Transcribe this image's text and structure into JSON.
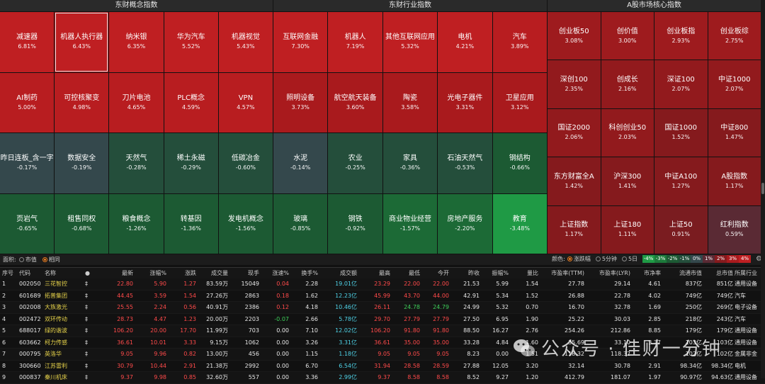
{
  "panels": [
    {
      "title": "东财概念指数",
      "tiles": [
        {
          "name": "减速器",
          "pct": "6.81%",
          "color": "#bf1f22"
        },
        {
          "name": "机器人执行器",
          "pct": "6.43%",
          "color": "#bf1f22",
          "selected": true
        },
        {
          "name": "纳米银",
          "pct": "6.35%",
          "color": "#bf1f22"
        },
        {
          "name": "华为汽车",
          "pct": "5.52%",
          "color": "#bf1f22"
        },
        {
          "name": "机器视觉",
          "pct": "5.43%",
          "color": "#bf1f22"
        },
        {
          "name": "AI制药",
          "pct": "5.00%",
          "color": "#b81d20"
        },
        {
          "name": "可控核聚变",
          "pct": "4.98%",
          "color": "#b81d20"
        },
        {
          "name": "刀片电池",
          "pct": "4.65%",
          "color": "#b81d20"
        },
        {
          "name": "PLC概念",
          "pct": "4.59%",
          "color": "#b81d20"
        },
        {
          "name": "VPN",
          "pct": "4.57%",
          "color": "#b81d20"
        },
        {
          "name": "昨日连板_含一字",
          "pct": "-0.17%",
          "color": "#34484c"
        },
        {
          "name": "数据安全",
          "pct": "-0.19%",
          "color": "#34484c"
        },
        {
          "name": "天然气",
          "pct": "-0.28%",
          "color": "#244e3b"
        },
        {
          "name": "稀土永磁",
          "pct": "-0.29%",
          "color": "#244e3b"
        },
        {
          "name": "低碳冶金",
          "pct": "-0.60%",
          "color": "#244e3b"
        },
        {
          "name": "页岩气",
          "pct": "-0.65%",
          "color": "#1c5a33"
        },
        {
          "name": "租售同权",
          "pct": "-0.68%",
          "color": "#1c5a33"
        },
        {
          "name": "粮食概念",
          "pct": "-1.26%",
          "color": "#1c5a33"
        },
        {
          "name": "转基因",
          "pct": "-1.36%",
          "color": "#1c5a33"
        },
        {
          "name": "发电机概念",
          "pct": "-1.56%",
          "color": "#1c5a33"
        }
      ]
    },
    {
      "title": "东财行业指数",
      "tiles": [
        {
          "name": "互联网金融",
          "pct": "7.30%",
          "color": "#bf1f22"
        },
        {
          "name": "机器人",
          "pct": "7.19%",
          "color": "#bf1f22"
        },
        {
          "name": "其他互联网应用",
          "pct": "5.32%",
          "color": "#bf1f22"
        },
        {
          "name": "电机",
          "pct": "4.21%",
          "color": "#bf1f22"
        },
        {
          "name": "汽车",
          "pct": "3.89%",
          "color": "#b81d20"
        },
        {
          "name": "照明设备",
          "pct": "3.73%",
          "color": "#a91a1d"
        },
        {
          "name": "航空航天装备",
          "pct": "3.60%",
          "color": "#a91a1d"
        },
        {
          "name": "陶瓷",
          "pct": "3.58%",
          "color": "#a91a1d"
        },
        {
          "name": "光电子器件",
          "pct": "3.31%",
          "color": "#a91a1d"
        },
        {
          "name": "卫星应用",
          "pct": "3.12%",
          "color": "#a91a1d"
        },
        {
          "name": "水泥",
          "pct": "-0.14%",
          "color": "#34484c"
        },
        {
          "name": "农业",
          "pct": "-0.25%",
          "color": "#244e3b"
        },
        {
          "name": "家具",
          "pct": "-0.36%",
          "color": "#244e3b"
        },
        {
          "name": "石油天然气",
          "pct": "-0.53%",
          "color": "#244e3b"
        },
        {
          "name": "钢结构",
          "pct": "-0.66%",
          "color": "#1c5a33"
        },
        {
          "name": "玻璃",
          "pct": "-0.85%",
          "color": "#1c5a33"
        },
        {
          "name": "钢铁",
          "pct": "-0.92%",
          "color": "#1c5a33"
        },
        {
          "name": "商业物业经营",
          "pct": "-1.57%",
          "color": "#1c6a36"
        },
        {
          "name": "房地产服务",
          "pct": "-2.20%",
          "color": "#1c6a36"
        },
        {
          "name": "教育",
          "pct": "-3.48%",
          "color": "#1f9a45"
        }
      ]
    },
    {
      "title": "A股市场核心指数",
      "tiles": [
        {
          "name": "创业板50",
          "pct": "3.08%",
          "color": "#9e1b1e"
        },
        {
          "name": "创价值",
          "pct": "3.00%",
          "color": "#9e1b1e"
        },
        {
          "name": "创业板指",
          "pct": "2.93%",
          "color": "#9e1b1e"
        },
        {
          "name": "创业板综",
          "pct": "2.75%",
          "color": "#9e1b1e"
        },
        {
          "name": "深创100",
          "pct": "2.35%",
          "color": "#921a1d"
        },
        {
          "name": "创成长",
          "pct": "2.16%",
          "color": "#921a1d"
        },
        {
          "name": "深证100",
          "pct": "2.07%",
          "color": "#921a1d"
        },
        {
          "name": "中证1000",
          "pct": "2.07%",
          "color": "#921a1d"
        },
        {
          "name": "国证2000",
          "pct": "2.06%",
          "color": "#921a1d"
        },
        {
          "name": "科创创业50",
          "pct": "2.03%",
          "color": "#921a1d"
        },
        {
          "name": "国证1000",
          "pct": "1.52%",
          "color": "#851a1d"
        },
        {
          "name": "中证800",
          "pct": "1.47%",
          "color": "#851a1d"
        },
        {
          "name": "东方财富全A",
          "pct": "1.42%",
          "color": "#851a1d"
        },
        {
          "name": "沪深300",
          "pct": "1.41%",
          "color": "#851a1d"
        },
        {
          "name": "中证A100",
          "pct": "1.27%",
          "color": "#851a1d"
        },
        {
          "name": "A股指数",
          "pct": "1.17%",
          "color": "#851a1d"
        },
        {
          "name": "上证指数",
          "pct": "1.17%",
          "color": "#851a1d"
        },
        {
          "name": "上证180",
          "pct": "1.11%",
          "color": "#851a1d"
        },
        {
          "name": "上证50",
          "pct": "0.91%",
          "color": "#7a1c20"
        },
        {
          "name": "红利指数",
          "pct": "0.59%",
          "color": "#5a2a34"
        }
      ]
    }
  ],
  "controls": {
    "area_label": "面积:",
    "area_options": [
      "市值",
      "相同"
    ],
    "area_selected": 1,
    "color_label": "颜色:",
    "color_options": [
      "涨跌幅",
      "5分钟",
      "5日"
    ],
    "color_selected": 0,
    "scale": [
      {
        "label": "-4%",
        "color": "#1f9a45"
      },
      {
        "label": "-3%",
        "color": "#1c7a3a"
      },
      {
        "label": "-2%",
        "color": "#1c5a33"
      },
      {
        "label": "-1%",
        "color": "#244e3b"
      },
      {
        "label": "0%",
        "color": "#34484c"
      },
      {
        "label": "1%",
        "color": "#5a2a34"
      },
      {
        "label": "2%",
        "color": "#851a1d"
      },
      {
        "label": "3%",
        "color": "#a91a1d"
      },
      {
        "label": "4%",
        "color": "#bf1f22"
      }
    ]
  },
  "table": {
    "headers": [
      "序号",
      "代码",
      "名称",
      "●",
      "最新",
      "涨幅%",
      "涨跌",
      "成交量",
      "现手",
      "涨速%",
      "换手%",
      "成交额",
      "最高",
      "最低",
      "今开",
      "昨收",
      "振幅%",
      "量比",
      "市盈率(TTM)",
      "市盈率(LYR)",
      "市净率",
      "流通市值",
      "总市值",
      "所属行业"
    ],
    "rows": [
      [
        "1",
        "002050",
        "三花智控",
        "‡",
        "22.80",
        "5.90",
        "1.27",
        "83.59万",
        "15049",
        "0.04",
        "2.28",
        "19.01亿",
        "23.29",
        "22.00",
        "22.00",
        "21.53",
        "5.99",
        "1.54",
        "27.78",
        "29.14",
        "4.61",
        "837亿",
        "851亿",
        "通用设备"
      ],
      [
        "2",
        "601689",
        "拓普集团",
        "‡",
        "44.45",
        "3.59",
        "1.54",
        "27.26万",
        "2863",
        "0.18",
        "1.62",
        "12.23亿",
        "45.99",
        "43.70",
        "44.00",
        "42.91",
        "5.34",
        "1.52",
        "26.88",
        "22.78",
        "4.02",
        "749亿",
        "749亿",
        "汽车"
      ],
      [
        "3",
        "002008",
        "大族激光",
        "‡",
        "25.55",
        "2.24",
        "0.56",
        "40.91万",
        "2386",
        "0.12",
        "4.18",
        "10.46亿",
        "26.11",
        "24.78",
        "24.79",
        "24.99",
        "5.32",
        "0.70",
        "16.70",
        "32.78",
        "1.69",
        "250亿",
        "269亿",
        "电子设备"
      ],
      [
        "4",
        "002472",
        "双环传动",
        "‡",
        "28.73",
        "4.47",
        "1.23",
        "20.00万",
        "2203",
        "-0.07",
        "2.66",
        "5.78亿",
        "29.70",
        "27.79",
        "27.79",
        "27.50",
        "6.95",
        "1.90",
        "25.22",
        "30.03",
        "2.85",
        "218亿",
        "243亿",
        "汽车"
      ],
      [
        "5",
        "688017",
        "绿的谐波",
        "‡",
        "106.20",
        "20.00",
        "17.70",
        "11.99万",
        "703",
        "0.00",
        "7.10",
        "12.02亿",
        "106.20",
        "91.80",
        "91.80",
        "88.50",
        "16.27",
        "2.76",
        "254.26",
        "212.86",
        "8.85",
        "179亿",
        "179亿",
        "通用设备"
      ],
      [
        "6",
        "603662",
        "柯力传感",
        "‡",
        "36.61",
        "10.01",
        "3.33",
        "9.15万",
        "1062",
        "0.00",
        "3.26",
        "3.31亿",
        "36.61",
        "35.00",
        "35.00",
        "33.28",
        "4.84",
        "1.60",
        "35.69",
        "33.10",
        "3.37",
        "103亿",
        "103亿",
        "通用设备"
      ],
      [
        "7",
        "000795",
        "英洛华",
        "‡",
        "9.05",
        "9.96",
        "0.82",
        "13.00万",
        "456",
        "0.00",
        "1.15",
        "1.18亿",
        "9.05",
        "9.05",
        "9.05",
        "8.23",
        "0.00",
        "1.51",
        "118.32",
        "118.32",
        "",
        "102亿",
        "102亿",
        "金属非金"
      ],
      [
        "8",
        "300660",
        "江苏雷利",
        "‡",
        "30.79",
        "10.44",
        "2.91",
        "21.38万",
        "2992",
        "0.00",
        "6.70",
        "6.54亿",
        "31.94",
        "28.58",
        "28.59",
        "27.88",
        "12.05",
        "3.20",
        "32.14",
        "30.78",
        "2.91",
        "98.34亿",
        "98.34亿",
        "电机"
      ],
      [
        "9",
        "000837",
        "秦川机床",
        "‡",
        "9.37",
        "9.98",
        "0.85",
        "32.60万",
        "557",
        "0.00",
        "3.36",
        "2.99亿",
        "9.37",
        "8.58",
        "8.58",
        "8.52",
        "9.27",
        "1.20",
        "412.79",
        "181.07",
        "1.97",
        "90.97亿",
        "94.63亿",
        "通用设备"
      ]
    ]
  },
  "watermark": {
    "text": "公众号 · 佳财一分钟"
  }
}
